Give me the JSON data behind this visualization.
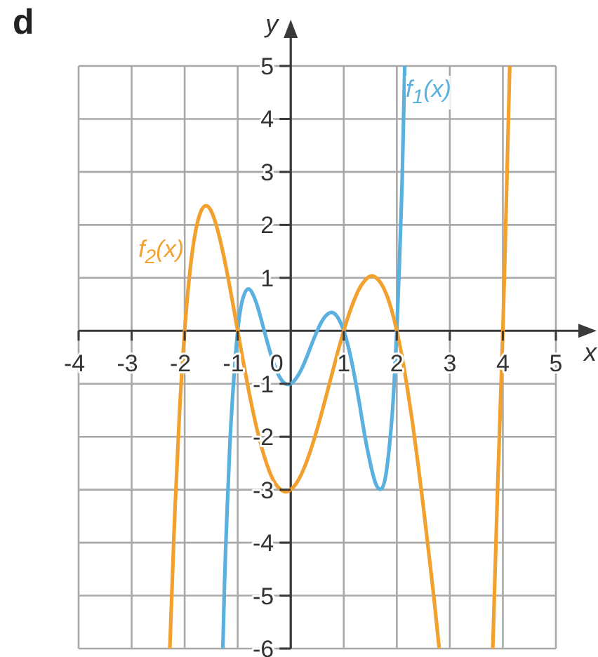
{
  "chart_data": {
    "type": "line",
    "title": "d",
    "xlabel": "x",
    "ylabel": "y",
    "series": [
      {
        "name": "f$_{1}$(x)",
        "color": "#5ab0de",
        "x": [
          -1.28,
          -1.25,
          -1.2,
          -1.15,
          -1.1,
          -1.0,
          -0.9,
          -0.8,
          -0.7,
          -0.6,
          -0.5,
          -0.4,
          -0.3,
          -0.2,
          -0.1,
          0,
          0.1,
          0.2,
          0.3,
          0.4,
          0.5,
          0.6,
          0.7,
          0.8,
          0.9,
          1.0,
          1.1,
          1.2,
          1.3,
          1.4,
          1.5,
          1.6,
          1.7,
          1.8,
          1.9,
          1.95,
          2.0,
          2.05,
          2.1,
          2.15
        ],
        "values": [
          -6,
          -4.8,
          -3.4,
          -2.2,
          -1.3,
          0,
          0.62,
          0.79,
          0.66,
          0.37,
          0,
          -0.36,
          -0.67,
          -0.89,
          -1.0,
          -1.0,
          -0.9,
          -0.73,
          -0.5,
          -0.24,
          0,
          0.2,
          0.32,
          0.34,
          0.23,
          0,
          -0.36,
          -0.84,
          -1.4,
          -2.0,
          -2.5,
          -2.88,
          -2.99,
          -2.68,
          -1.75,
          -1.0,
          0,
          1.3,
          2.8,
          5
        ]
      },
      {
        "name": "f$_{2}$(x)",
        "color": "#f2a12e",
        "x": [
          -2.28,
          -2.2,
          -2.1,
          -2.0,
          -1.9,
          -1.8,
          -1.7,
          -1.6,
          -1.5,
          -1.4,
          -1.3,
          -1.2,
          -1.1,
          -1.0,
          -0.9,
          -0.8,
          -0.7,
          -0.6,
          -0.5,
          -0.4,
          -0.3,
          -0.2,
          -0.1,
          0,
          0.1,
          0.2,
          0.3,
          0.4,
          0.5,
          0.6,
          0.7,
          0.8,
          0.9,
          1.0,
          1.1,
          1.2,
          1.3,
          1.4,
          1.5,
          1.6,
          1.7,
          1.8,
          1.9,
          2.0,
          2.1,
          2.2,
          2.3,
          2.4,
          2.5,
          2.6,
          2.7,
          2.8,
          3.3,
          3.81,
          3.9,
          4.0,
          4.1,
          4.13
        ],
        "values": [
          -6,
          -3.8,
          -1.6,
          0,
          1.13,
          1.85,
          2.24,
          2.36,
          2.26,
          1.98,
          1.58,
          1.1,
          0.56,
          0,
          -0.56,
          -1.09,
          -1.58,
          -2.01,
          -2.37,
          -2.66,
          -2.87,
          -2.99,
          -3.04,
          -3.0,
          -2.89,
          -2.71,
          -2.47,
          -2.18,
          -1.85,
          -1.49,
          -1.11,
          -0.73,
          -0.35,
          0,
          0.32,
          0.59,
          0.81,
          0.95,
          1.03,
          1.01,
          0.9,
          0.7,
          0.4,
          0,
          -0.5,
          -1.09,
          -1.76,
          -2.51,
          -3.32,
          -4.17,
          -5.04,
          -6,
          null,
          -6,
          -3.0,
          0,
          3.8,
          5
        ]
      }
    ],
    "xlim": [
      -4,
      5
    ],
    "ylim": [
      -6,
      5
    ],
    "xticks": [
      -4,
      -3,
      -2,
      -1,
      0,
      1,
      2,
      3,
      4,
      5
    ],
    "yticks": [
      -6,
      -5,
      -4,
      -3,
      -2,
      -1,
      1,
      2,
      3,
      4,
      5
    ],
    "grid": true,
    "marker": "none",
    "line_style": "solid"
  }
}
